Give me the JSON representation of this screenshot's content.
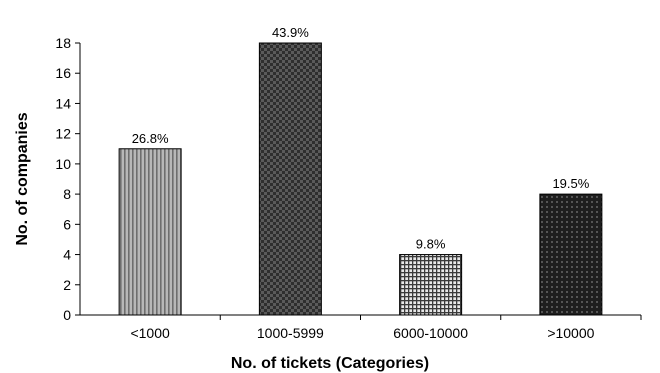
{
  "chart_data": {
    "type": "bar",
    "title": "",
    "xlabel": "No. of tickets (Categories)",
    "ylabel": "No. of companies",
    "categories": [
      "<1000",
      "1000-5999",
      "6000-10000",
      ">10000"
    ],
    "values": [
      11,
      18,
      4,
      8
    ],
    "data_labels": [
      "26.8%",
      "43.9%",
      "9.8%",
      "19.5%"
    ],
    "ylim": [
      0,
      18
    ],
    "yticks": [
      0,
      2,
      4,
      6,
      8,
      10,
      12,
      14,
      16,
      18
    ],
    "grid": false,
    "legend": "none",
    "bar_patterns": [
      "vertical-stripes",
      "dark-checker",
      "light-grid",
      "dark-weave"
    ]
  }
}
